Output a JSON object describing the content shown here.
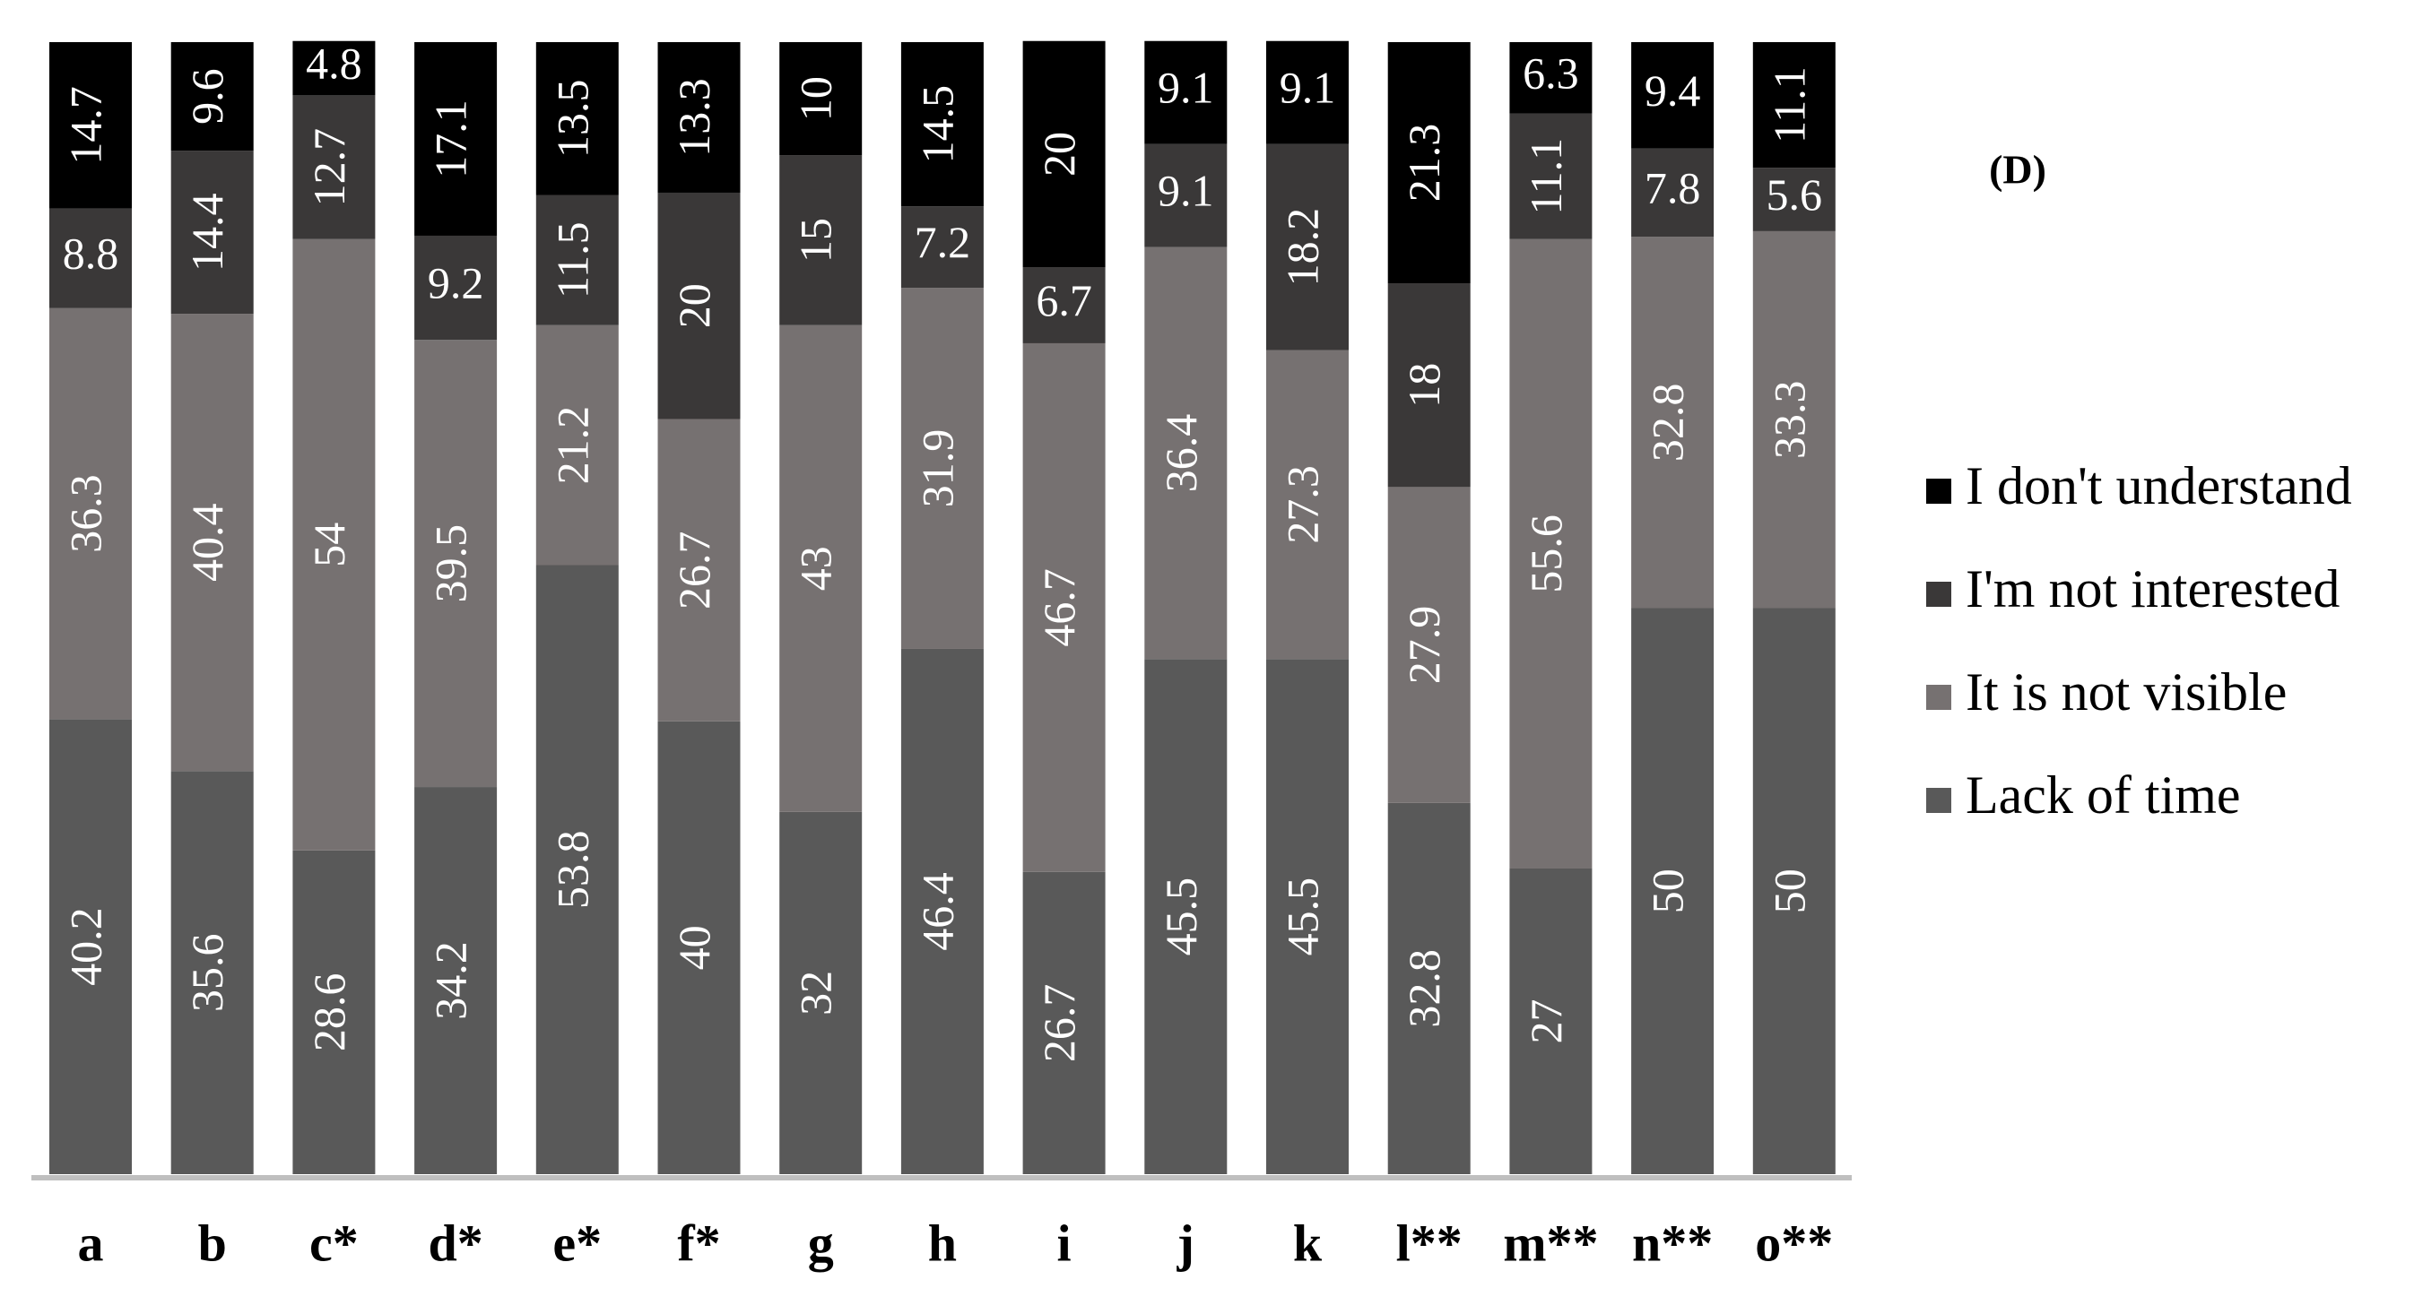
{
  "chart_data": {
    "type": "stacked_bar",
    "panel_label": "(D)",
    "categories": [
      "a",
      "b",
      "c*",
      "d*",
      "e*",
      "f*",
      "g",
      "h",
      "i",
      "j",
      "k",
      "l**",
      "m**",
      "n**",
      "o**"
    ],
    "series": [
      {
        "name": "Lack of time",
        "color": "#595959",
        "values": [
          40.2,
          35.6,
          28.6,
          34.2,
          53.8,
          40,
          32,
          46.4,
          26.7,
          45.5,
          45.5,
          32.8,
          27,
          50,
          50
        ]
      },
      {
        "name": "It is not visible",
        "color": "#767171",
        "values": [
          36.3,
          40.4,
          54,
          39.5,
          21.2,
          26.7,
          43,
          31.9,
          46.7,
          36.4,
          27.3,
          27.9,
          55.6,
          32.8,
          33.3
        ]
      },
      {
        "name": "I'm not interested",
        "color": "#3a3838",
        "values": [
          8.8,
          14.4,
          12.7,
          9.2,
          11.5,
          20,
          15,
          7.2,
          6.7,
          9.1,
          18.2,
          18,
          11.1,
          7.8,
          5.6
        ]
      },
      {
        "name": "I don't understand",
        "color": "#000000",
        "values": [
          14.7,
          9.6,
          4.8,
          17.1,
          13.5,
          13.3,
          10,
          14.5,
          20,
          9.1,
          9.1,
          21.3,
          6.3,
          9.4,
          11.1
        ]
      }
    ],
    "ylim": [
      0,
      100
    ],
    "legend": "right"
  }
}
